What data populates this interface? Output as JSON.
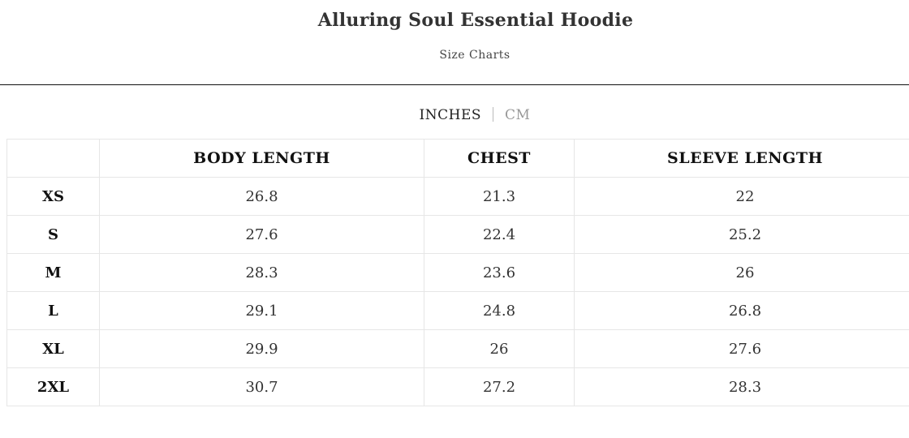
{
  "header": {
    "title": "Alluring Soul Essential Hoodie",
    "subtitle": "Size Charts"
  },
  "units": {
    "active": "INCHES",
    "inactive": "CM"
  },
  "table": {
    "columns": [
      "",
      "BODY LENGTH",
      "CHEST",
      "SLEEVE LENGTH"
    ],
    "rows": [
      [
        "XS",
        "26.8",
        "21.3",
        "22"
      ],
      [
        "S",
        "27.6",
        "22.4",
        "25.2"
      ],
      [
        "M",
        "28.3",
        "23.6",
        "26"
      ],
      [
        "L",
        "29.1",
        "24.8",
        "26.8"
      ],
      [
        "XL",
        "29.9",
        "26",
        "27.6"
      ],
      [
        "2XL",
        "30.7",
        "27.2",
        "28.3"
      ]
    ]
  }
}
